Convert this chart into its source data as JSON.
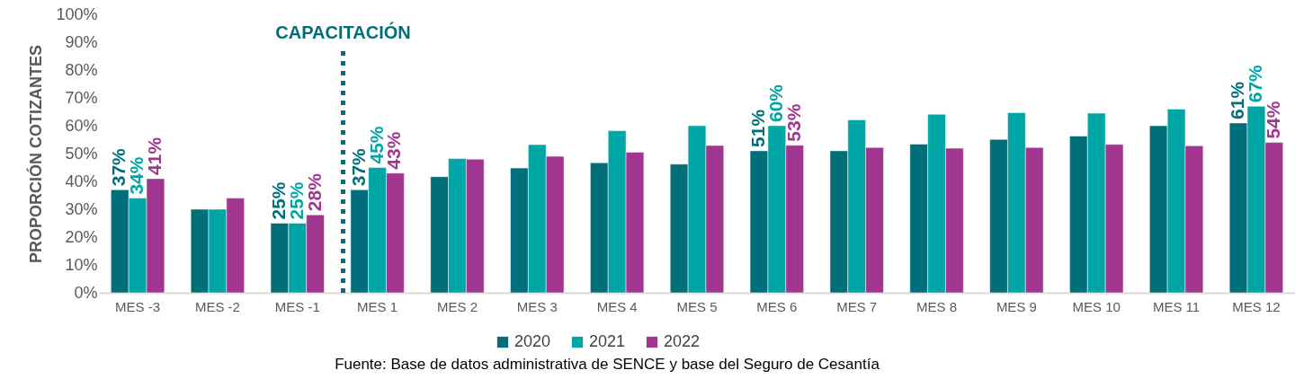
{
  "chart_data": {
    "type": "bar",
    "ylabel": "PROPORCIÓN COTIZANTES",
    "categories": [
      "MES -3",
      "MES -2",
      "MES -1",
      "MES 1",
      "MES 2",
      "MES 3",
      "MES 4",
      "MES 5",
      "MES 6",
      "MES 7",
      "MES 8",
      "MES 9",
      "MES 10",
      "MES 11",
      "MES 12"
    ],
    "series": [
      {
        "name": "2020",
        "color": "#006f7a",
        "values": [
          37,
          30,
          25,
          37,
          41.7,
          44.8,
          46.7,
          46.2,
          51,
          51,
          53.4,
          55.1,
          56.3,
          60,
          61
        ],
        "value_labels": [
          "37%",
          null,
          "25%",
          "37%",
          null,
          null,
          null,
          null,
          "51%",
          null,
          null,
          null,
          null,
          null,
          "61%"
        ]
      },
      {
        "name": "2021",
        "color": "#00a5a5",
        "values": [
          34,
          30,
          25,
          45,
          48.2,
          53.2,
          58.2,
          60,
          60,
          62.1,
          64.1,
          64.7,
          64.5,
          66,
          67
        ],
        "value_labels": [
          "34%",
          null,
          "25%",
          "45%",
          null,
          null,
          null,
          null,
          "60%",
          null,
          null,
          null,
          null,
          null,
          "67%"
        ]
      },
      {
        "name": "2022",
        "color": "#a0368f",
        "values": [
          41,
          34,
          28,
          43,
          48,
          49,
          50.5,
          52.9,
          53,
          52.2,
          51.9,
          52.2,
          53.3,
          52.8,
          54
        ],
        "value_labels": [
          "41%",
          null,
          "28%",
          "43%",
          null,
          null,
          null,
          null,
          "53%",
          null,
          null,
          null,
          null,
          null,
          "54%"
        ]
      }
    ],
    "ylim": [
      0,
      100
    ],
    "yticks": [
      {
        "value": 0,
        "label": "0%"
      },
      {
        "value": 10,
        "label": "10%"
      },
      {
        "value": 20,
        "label": "20%"
      },
      {
        "value": 30,
        "label": "30%"
      },
      {
        "value": 40,
        "label": "40%"
      },
      {
        "value": 50,
        "label": "50%"
      },
      {
        "value": 60,
        "label": "60%"
      },
      {
        "value": 70,
        "label": "70%"
      },
      {
        "value": 80,
        "label": "80%"
      },
      {
        "value": 90,
        "label": "90%"
      },
      {
        "value": 100,
        "label": "100%"
      }
    ],
    "ref_lines": [
      {
        "axis": "x",
        "value": "MES 1",
        "label": "CAPACITACIÓN",
        "color": "#006f7a",
        "line_style": "dotted"
      }
    ],
    "grid": false,
    "legend": "bottom",
    "annotations": [
      "Fuente: Base de datos administrativa de SENCE y base del Seguro de Cesantía"
    ]
  }
}
